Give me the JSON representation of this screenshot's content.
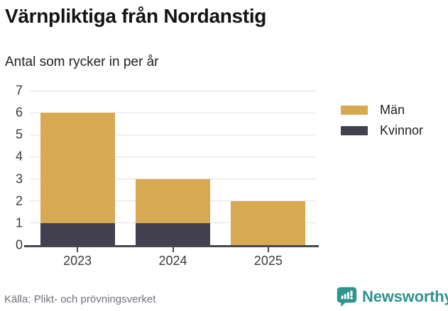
{
  "title": "Värnpliktiga från Nordanstig",
  "subtitle": "Antal som rycker in per år",
  "source": "Källa: Plikt- och prövningsverket",
  "brand": {
    "name": "Newsworthy",
    "color": "#2f938e",
    "icon": "bar-chart-speech-bubble-icon"
  },
  "colors": {
    "man": "#d8a953",
    "kvinnor": "#434150",
    "axis": "#47474f",
    "grid": "#e2e2e2",
    "tick_label": "#3a3a40"
  },
  "legend": {
    "items": [
      {
        "label": "Män",
        "color": "#d8a953"
      },
      {
        "label": "Kvinnor",
        "color": "#434150"
      }
    ],
    "position": "right"
  },
  "chart_data": {
    "type": "bar",
    "stacked": true,
    "title": "Värnpliktiga från Nordanstig",
    "subtitle": "Antal som rycker in per år",
    "categories": [
      "2023",
      "2024",
      "2025"
    ],
    "series": [
      {
        "name": "Män",
        "color": "#d8a953",
        "values": [
          5,
          2,
          2
        ]
      },
      {
        "name": "Kvinnor",
        "color": "#434150",
        "values": [
          1,
          1,
          0
        ]
      }
    ],
    "totals": [
      6,
      3,
      2
    ],
    "xlabel": "",
    "ylabel": "",
    "ylim": [
      0,
      7
    ],
    "yticks": [
      0,
      1,
      2,
      3,
      4,
      5,
      6,
      7
    ],
    "grid": true,
    "legend_position": "right"
  }
}
